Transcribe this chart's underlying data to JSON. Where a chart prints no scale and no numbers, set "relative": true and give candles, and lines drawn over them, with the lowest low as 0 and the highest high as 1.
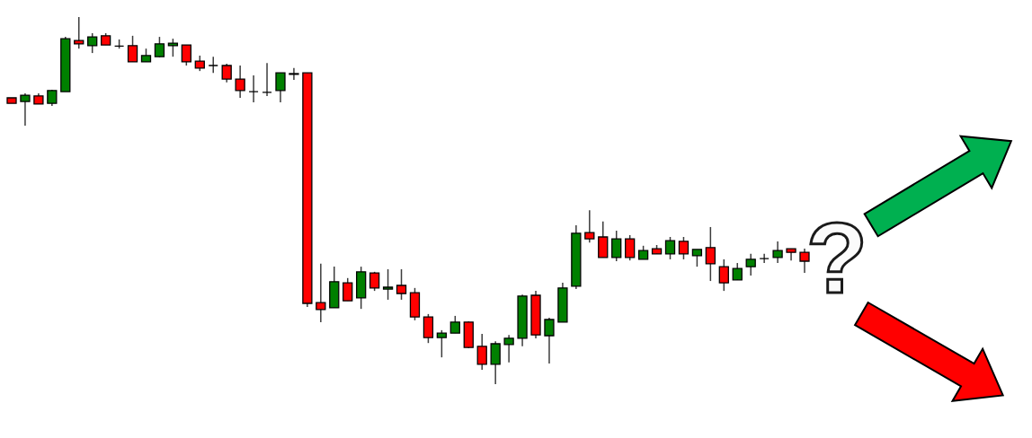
{
  "chart_data": {
    "type": "candlestick",
    "relative": true,
    "categories": [
      null,
      null,
      null,
      null,
      null,
      null,
      null,
      null,
      null,
      null,
      null,
      null,
      null,
      null,
      null,
      null,
      null,
      null,
      null,
      null,
      null,
      null,
      null,
      null,
      null,
      null,
      null,
      null,
      null,
      null,
      null,
      null,
      null,
      null,
      null,
      null,
      null,
      null,
      null,
      null,
      null,
      null,
      null,
      null,
      null,
      null,
      null,
      null,
      null,
      null,
      null,
      null,
      null,
      null,
      null,
      null,
      null,
      null,
      null,
      null
    ],
    "ohlc": [
      [
        0.78,
        0.78,
        0.765,
        0.765
      ],
      [
        0.77,
        0.792,
        0.704,
        0.787
      ],
      [
        0.785,
        0.792,
        0.763,
        0.763
      ],
      [
        0.765,
        0.802,
        0.758,
        0.8
      ],
      [
        0.797,
        0.946,
        0.797,
        0.941
      ],
      [
        0.936,
        1.0,
        0.914,
        0.927
      ],
      [
        0.922,
        0.956,
        0.902,
        0.946
      ],
      [
        0.949,
        0.956,
        0.924,
        0.924
      ],
      [
        0.921,
        0.939,
        0.914,
        0.921
      ],
      [
        0.922,
        0.949,
        0.878,
        0.878
      ],
      [
        0.878,
        0.914,
        0.878,
        0.895
      ],
      [
        0.892,
        0.946,
        0.89,
        0.927
      ],
      [
        0.922,
        0.941,
        0.892,
        0.929
      ],
      [
        0.924,
        0.924,
        0.868,
        0.878
      ],
      [
        0.88,
        0.895,
        0.853,
        0.861
      ],
      [
        0.868,
        0.892,
        0.848,
        0.868
      ],
      [
        0.868,
        0.873,
        0.822,
        0.831
      ],
      [
        0.831,
        0.868,
        0.78,
        0.8
      ],
      [
        0.797,
        0.841,
        0.768,
        0.797
      ],
      [
        0.795,
        0.875,
        0.785,
        0.795
      ],
      [
        0.8,
        0.848,
        0.768,
        0.848
      ],
      [
        0.844,
        0.861,
        0.829,
        0.846
      ],
      [
        0.848,
        0.848,
        0.21,
        0.22
      ],
      [
        0.222,
        0.328,
        0.169,
        0.203
      ],
      [
        0.208,
        0.32,
        0.208,
        0.279
      ],
      [
        0.276,
        0.289,
        0.227,
        0.227
      ],
      [
        0.235,
        0.32,
        0.205,
        0.306
      ],
      [
        0.303,
        0.306,
        0.254,
        0.262
      ],
      [
        0.259,
        0.313,
        0.23,
        0.264
      ],
      [
        0.269,
        0.313,
        0.23,
        0.247
      ],
      [
        0.249,
        0.262,
        0.174,
        0.183
      ],
      [
        0.183,
        0.191,
        0.112,
        0.127
      ],
      [
        0.127,
        0.147,
        0.073,
        0.139
      ],
      [
        0.139,
        0.186,
        0.139,
        0.169
      ],
      [
        0.169,
        0.171,
        0.098,
        0.1
      ],
      [
        0.103,
        0.137,
        0.039,
        0.054
      ],
      [
        0.054,
        0.117,
        0.0,
        0.11
      ],
      [
        0.108,
        0.134,
        0.059,
        0.125
      ],
      [
        0.125,
        0.244,
        0.103,
        0.24
      ],
      [
        0.242,
        0.254,
        0.125,
        0.134
      ],
      [
        0.132,
        0.181,
        0.056,
        0.176
      ],
      [
        0.169,
        0.276,
        0.169,
        0.262
      ],
      [
        0.267,
        0.433,
        0.259,
        0.411
      ],
      [
        0.413,
        0.474,
        0.386,
        0.396
      ],
      [
        0.401,
        0.443,
        0.345,
        0.345
      ],
      [
        0.345,
        0.418,
        0.335,
        0.396
      ],
      [
        0.396,
        0.406,
        0.337,
        0.345
      ],
      [
        0.34,
        0.377,
        0.34,
        0.364
      ],
      [
        0.369,
        0.379,
        0.355,
        0.355
      ],
      [
        0.355,
        0.401,
        0.34,
        0.391
      ],
      [
        0.389,
        0.401,
        0.34,
        0.355
      ],
      [
        0.35,
        0.367,
        0.32,
        0.367
      ],
      [
        0.372,
        0.428,
        0.281,
        0.328
      ],
      [
        0.32,
        0.34,
        0.254,
        0.276
      ],
      [
        0.284,
        0.33,
        0.284,
        0.315
      ],
      [
        0.32,
        0.355,
        0.296,
        0.34
      ],
      [
        0.342,
        0.355,
        0.33,
        0.342
      ],
      [
        0.345,
        0.389,
        0.33,
        0.364
      ],
      [
        0.369,
        0.369,
        0.337,
        0.359
      ],
      [
        0.359,
        0.369,
        0.303,
        0.335
      ]
    ],
    "colors": [
      "#ff0000",
      "#008000",
      "#ff0000",
      "#008000",
      "#008000",
      "#ff0000",
      "#008000",
      "#ff0000",
      "#000000",
      "#ff0000",
      "#008000",
      "#008000",
      "#008000",
      "#ff0000",
      "#ff0000",
      "#000000",
      "#ff0000",
      "#ff0000",
      "#000000",
      "#000000",
      "#008000",
      "#008000",
      "#ff0000",
      "#ff0000",
      "#008000",
      "#ff0000",
      "#008000",
      "#ff0000",
      "#008000",
      "#ff0000",
      "#ff0000",
      "#ff0000",
      "#008000",
      "#008000",
      "#ff0000",
      "#ff0000",
      "#008000",
      "#008000",
      "#008000",
      "#ff0000",
      "#008000",
      "#008000",
      "#008000",
      "#ff0000",
      "#ff0000",
      "#008000",
      "#ff0000",
      "#008000",
      "#ff0000",
      "#008000",
      "#ff0000",
      "#008000",
      "#ff0000",
      "#ff0000",
      "#008000",
      "#008000",
      "#000000",
      "#008000",
      "#ff0000",
      "#ff0000"
    ],
    "annotations": [
      "?"
    ]
  }
}
